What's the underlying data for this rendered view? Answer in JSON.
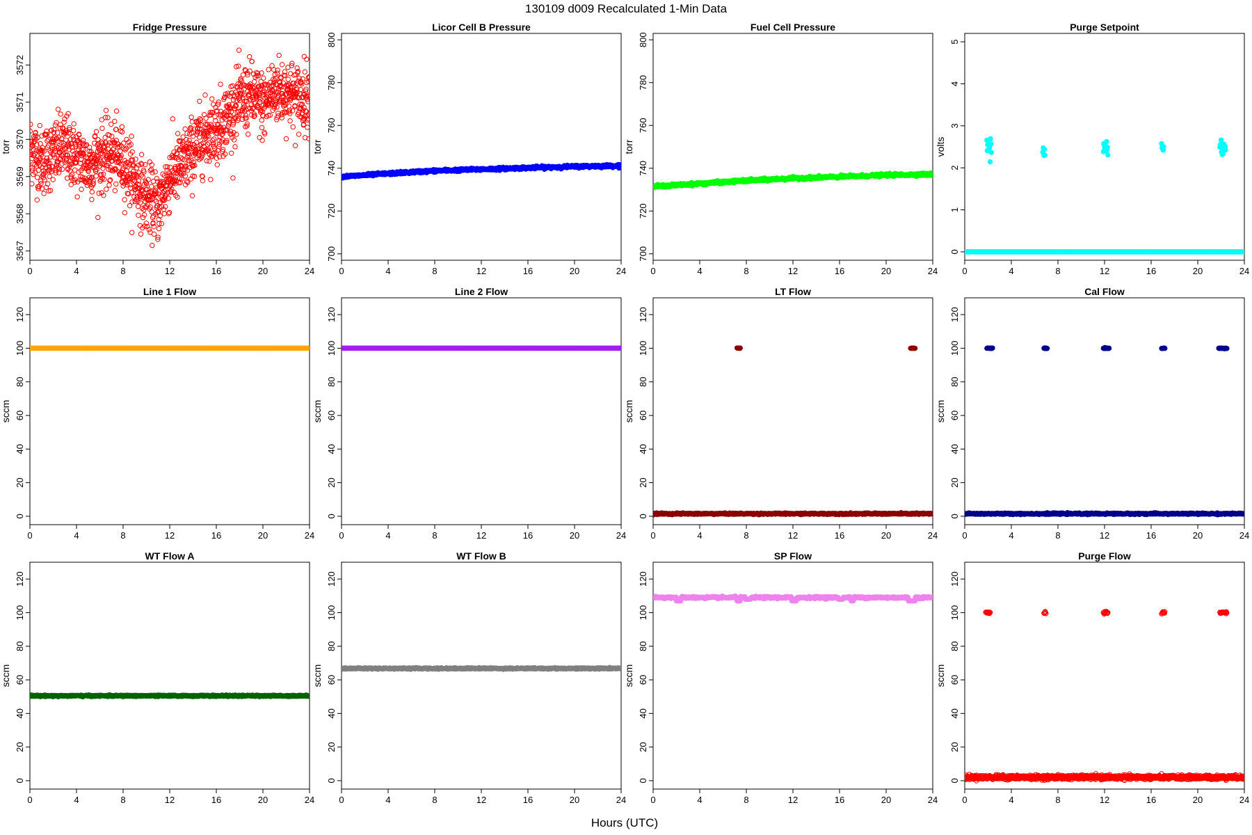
{
  "figure": {
    "title": "130109    d009    Recalculated 1-Min Data",
    "xlabel": "Hours (UTC)"
  },
  "chart_data": [
    {
      "type": "scatter",
      "title": "Fridge Pressure",
      "ylabel": "torr",
      "color": "#ff0000",
      "marker": "open-circle",
      "xlim": [
        0,
        24
      ],
      "ylim": [
        3566.75,
        3572.85
      ],
      "xticks": [
        0,
        4,
        8,
        12,
        16,
        20,
        24
      ],
      "yticks": [
        3567,
        3568,
        3569,
        3570,
        3571,
        3572
      ],
      "trend": [
        [
          0,
          3569.8
        ],
        [
          1,
          3569.4
        ],
        [
          2,
          3569.6
        ],
        [
          3,
          3569.8
        ],
        [
          4,
          3569.5
        ],
        [
          5,
          3569.3
        ],
        [
          6,
          3569.5
        ],
        [
          7,
          3569.6
        ],
        [
          8,
          3569.4
        ],
        [
          9,
          3568.9
        ],
        [
          10,
          3568.4
        ],
        [
          11,
          3568.2
        ],
        [
          12,
          3569.0
        ],
        [
          13,
          3569.3
        ],
        [
          14,
          3569.7
        ],
        [
          15,
          3570.1
        ],
        [
          16,
          3570.3
        ],
        [
          17,
          3570.6
        ],
        [
          18,
          3571.0
        ],
        [
          19,
          3571.2
        ],
        [
          20,
          3570.9
        ],
        [
          21,
          3571.3
        ],
        [
          22,
          3571.3
        ],
        [
          23,
          3571.1
        ],
        [
          24,
          3571.2
        ]
      ],
      "noise": 0.45
    },
    {
      "type": "scatter",
      "title": "Licor Cell B Pressure",
      "ylabel": "torr",
      "color": "#0000ff",
      "marker": "filled-circle",
      "xlim": [
        0,
        24
      ],
      "ylim": [
        697,
        803
      ],
      "xticks": [
        0,
        4,
        8,
        12,
        16,
        20,
        24
      ],
      "yticks": [
        700,
        720,
        740,
        760,
        780,
        800
      ],
      "trend": [
        [
          0,
          736
        ],
        [
          4,
          737.5
        ],
        [
          8,
          738.8
        ],
        [
          12,
          739.5
        ],
        [
          16,
          740.2
        ],
        [
          20,
          740.8
        ],
        [
          24,
          741.2
        ]
      ],
      "noise": 0.3
    },
    {
      "type": "scatter",
      "title": "Fuel Cell Pressure",
      "ylabel": "torr",
      "color": "#00ff00",
      "marker": "filled-circle",
      "xlim": [
        0,
        24
      ],
      "ylim": [
        697,
        803
      ],
      "xticks": [
        0,
        4,
        8,
        12,
        16,
        20,
        24
      ],
      "yticks": [
        700,
        720,
        740,
        760,
        780,
        800
      ],
      "trend": [
        [
          0,
          731.5
        ],
        [
          4,
          732.8
        ],
        [
          8,
          734.2
        ],
        [
          12,
          735.3
        ],
        [
          16,
          736
        ],
        [
          20,
          736.8
        ],
        [
          24,
          737.2
        ]
      ],
      "noise": 0.3
    },
    {
      "type": "scatter",
      "title": "Purge Setpoint",
      "ylabel": "volts",
      "color": "#00ffff",
      "marker": "filled-circle",
      "xlim": [
        0,
        24
      ],
      "ylim": [
        -0.2,
        5.2
      ],
      "xticks": [
        0,
        4,
        8,
        12,
        16,
        20,
        24
      ],
      "yticks": [
        0,
        1,
        2,
        3,
        4,
        5
      ],
      "trend": [
        [
          0,
          0
        ],
        [
          24,
          0
        ]
      ],
      "noise": 0.0,
      "spikes": [
        {
          "x": [
            1.9,
            2.3
          ],
          "y": 2.48
        },
        {
          "x": 6.8,
          "y": 2.46
        },
        {
          "x": [
            11.9,
            12.3
          ],
          "y": 2.47
        },
        {
          "x": [
            16.9,
            17.1
          ],
          "y": 2.47
        },
        {
          "x": [
            21.9,
            22.4
          ],
          "y": 2.49
        }
      ]
    },
    {
      "type": "scatter",
      "title": "Line 1 Flow",
      "ylabel": "sccm",
      "color": "#ffa500",
      "marker": "filled-circle",
      "xlim": [
        0,
        24
      ],
      "ylim": [
        -5,
        130
      ],
      "xticks": [
        0,
        4,
        8,
        12,
        16,
        20,
        24
      ],
      "yticks": [
        0,
        20,
        40,
        60,
        80,
        100,
        120
      ],
      "trend": [
        [
          0,
          100
        ],
        [
          24,
          100
        ]
      ],
      "noise": 0.0
    },
    {
      "type": "scatter",
      "title": "Line 2 Flow",
      "ylabel": "sccm",
      "color": "#a020f0",
      "marker": "filled-circle",
      "xlim": [
        0,
        24
      ],
      "ylim": [
        -5,
        130
      ],
      "xticks": [
        0,
        4,
        8,
        12,
        16,
        20,
        24
      ],
      "yticks": [
        0,
        20,
        40,
        60,
        80,
        100,
        120
      ],
      "trend": [
        [
          0,
          100
        ],
        [
          24,
          100
        ]
      ],
      "noise": 0.0
    },
    {
      "type": "scatter",
      "title": "LT Flow",
      "ylabel": "sccm",
      "color": "#8b0000",
      "marker": "filled-circle",
      "xlim": [
        0,
        24
      ],
      "ylim": [
        -5,
        130
      ],
      "xticks": [
        0,
        4,
        8,
        12,
        16,
        20,
        24
      ],
      "yticks": [
        0,
        20,
        40,
        60,
        80,
        100,
        120
      ],
      "trend": [
        [
          0,
          1.5
        ],
        [
          24,
          1.5
        ]
      ],
      "noise": 0.2,
      "spikes": [
        {
          "x": [
            7.2,
            7.5
          ],
          "y": 100
        },
        {
          "x": [
            22.1,
            22.5
          ],
          "y": 100
        }
      ]
    },
    {
      "type": "scatter",
      "title": "Cal Flow",
      "ylabel": "sccm",
      "color": "#00008b",
      "marker": "filled-circle",
      "xlim": [
        0,
        24
      ],
      "ylim": [
        -5,
        130
      ],
      "xticks": [
        0,
        4,
        8,
        12,
        16,
        20,
        24
      ],
      "yticks": [
        0,
        20,
        40,
        60,
        80,
        100,
        120
      ],
      "trend": [
        [
          0,
          1.5
        ],
        [
          24,
          1.5
        ]
      ],
      "noise": 0.2,
      "spikes": [
        {
          "x": [
            1.9,
            2.4
          ],
          "y": 100
        },
        {
          "x": [
            6.8,
            7.1
          ],
          "y": 100
        },
        {
          "x": [
            11.9,
            12.4
          ],
          "y": 100
        },
        {
          "x": [
            16.9,
            17.2
          ],
          "y": 100
        },
        {
          "x": [
            21.8,
            22.5
          ],
          "y": 100
        }
      ]
    },
    {
      "type": "scatter",
      "title": "WT Flow A",
      "ylabel": "sccm",
      "color": "#006400",
      "marker": "filled-circle",
      "xlim": [
        0,
        24
      ],
      "ylim": [
        -5,
        130
      ],
      "xticks": [
        0,
        4,
        8,
        12,
        16,
        20,
        24
      ],
      "yticks": [
        0,
        20,
        40,
        60,
        80,
        100,
        120
      ],
      "trend": [
        [
          0,
          50.5
        ],
        [
          24,
          50.5
        ]
      ],
      "noise": 0.2
    },
    {
      "type": "scatter",
      "title": "WT Flow B",
      "ylabel": "sccm",
      "color": "#808080",
      "marker": "filled-circle",
      "xlim": [
        0,
        24
      ],
      "ylim": [
        -5,
        130
      ],
      "xticks": [
        0,
        4,
        8,
        12,
        16,
        20,
        24
      ],
      "yticks": [
        0,
        20,
        40,
        60,
        80,
        100,
        120
      ],
      "trend": [
        [
          0,
          66.8
        ],
        [
          24,
          66.8
        ]
      ],
      "noise": 0.2
    },
    {
      "type": "scatter",
      "title": "SP Flow",
      "ylabel": "sccm",
      "color": "#ee82ee",
      "marker": "filled-circle",
      "xlim": [
        0,
        24
      ],
      "ylim": [
        -5,
        130
      ],
      "xticks": [
        0,
        4,
        8,
        12,
        16,
        20,
        24
      ],
      "yticks": [
        0,
        20,
        40,
        60,
        80,
        100,
        120
      ],
      "trend": [
        [
          0,
          109
        ],
        [
          24,
          109
        ]
      ],
      "noise": 0.3,
      "dips": [
        {
          "x": [
            2.0,
            2.4
          ],
          "y": 107
        },
        {
          "x": [
            7.2,
            7.5
          ],
          "y": 107
        },
        {
          "x": [
            7.9,
            8.4
          ],
          "y": 108
        },
        {
          "x": [
            11.9,
            12.3
          ],
          "y": 107
        },
        {
          "x": [
            15.9,
            16.3
          ],
          "y": 108
        },
        {
          "x": [
            17.0,
            17.2
          ],
          "y": 107
        },
        {
          "x": [
            21.9,
            22.5
          ],
          "y": 107
        }
      ]
    },
    {
      "type": "scatter",
      "title": "Purge Flow",
      "ylabel": "sccm",
      "color": "#ff0000",
      "marker": "open-circle",
      "xlim": [
        0,
        24
      ],
      "ylim": [
        -5,
        130
      ],
      "xticks": [
        0,
        4,
        8,
        12,
        16,
        20,
        24
      ],
      "yticks": [
        0,
        20,
        40,
        60,
        80,
        100,
        120
      ],
      "trend": [
        [
          0,
          2
        ],
        [
          24,
          2
        ]
      ],
      "noise": 0.6,
      "spikes": [
        {
          "x": [
            1.8,
            2.2
          ],
          "y": 100
        },
        {
          "x": [
            6.8,
            7.0
          ],
          "y": 100
        },
        {
          "x": [
            11.9,
            12.3
          ],
          "y": 100
        },
        {
          "x": [
            16.9,
            17.2
          ],
          "y": 100
        },
        {
          "x": [
            21.9,
            22.5
          ],
          "y": 100
        }
      ]
    }
  ]
}
